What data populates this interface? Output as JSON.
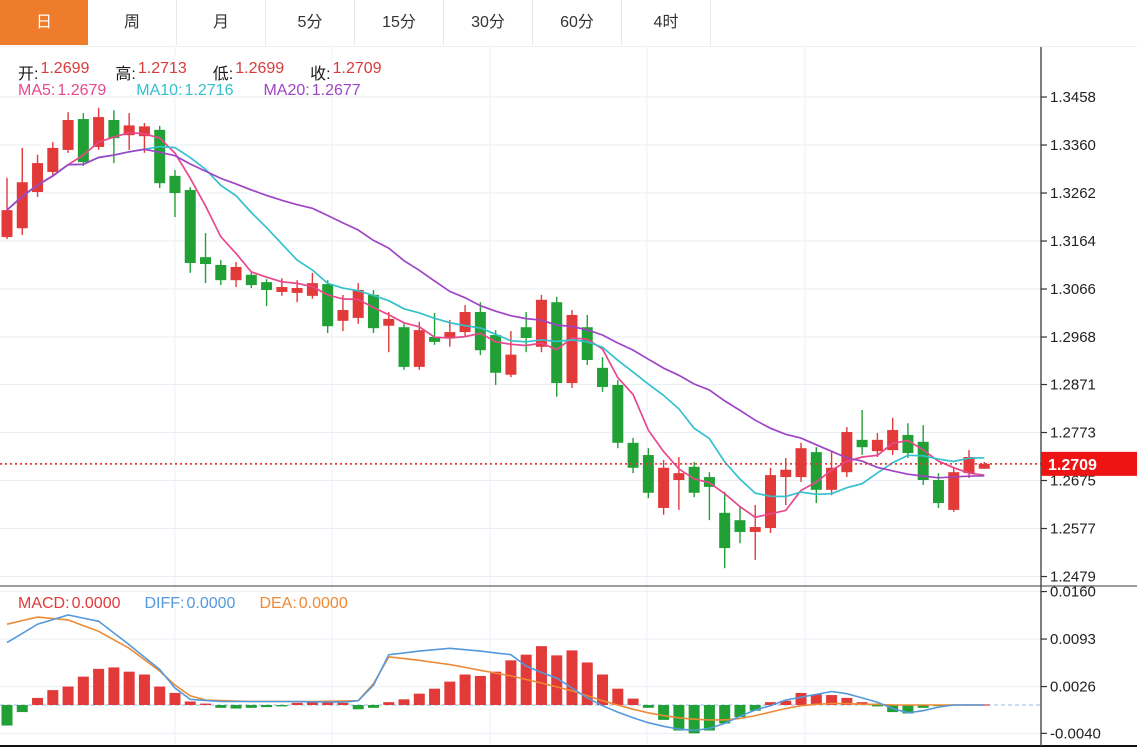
{
  "toolbar": {
    "tabs": [
      {
        "label": "日",
        "active": true
      },
      {
        "label": "周",
        "active": false
      },
      {
        "label": "月",
        "active": false
      },
      {
        "label": "5分",
        "active": false
      },
      {
        "label": "15分",
        "active": false
      },
      {
        "label": "30分",
        "active": false
      },
      {
        "label": "60分",
        "active": false
      },
      {
        "label": "4时",
        "active": false
      }
    ]
  },
  "legend": {
    "open_label": "开:",
    "open": "1.2699",
    "high_label": "高:",
    "high": "1.2713",
    "low_label": "低:",
    "low": "1.2699",
    "close_label": "收:",
    "close": "1.2709",
    "ma5_label": "MA5:",
    "ma5": "1.2679",
    "ma10_label": "MA10:",
    "ma10": "1.2716",
    "ma20_label": "MA20:",
    "ma20": "1.2677"
  },
  "macd_legend": {
    "macd_label": "MACD:",
    "macd": "0.0000",
    "diff_label": "DIFF:",
    "diff": "0.0000",
    "dea_label": "DEA:",
    "dea": "0.0000"
  },
  "price_badge": "1.2709",
  "colors": {
    "up": "#e23939",
    "down": "#21a135",
    "ma5": "#e8478d",
    "ma10": "#33c1cf",
    "ma20": "#9f44c6",
    "diff": "#5599dd",
    "dea": "#ed8a33",
    "grid": "#e9eff6",
    "vgrid": "#edf2f8",
    "axis_text": "#222222",
    "axis_line": "#444444",
    "badge_bg": "#ee1414",
    "badge_text": "#ffffff",
    "dotted_price_line": "#e23939",
    "tab_active_bg": "#ef7c2b",
    "zero_dash": "#8fbde8"
  },
  "chart_data": {
    "type": "candlestick+macd",
    "title": "",
    "legend_position": "top-left",
    "grid": true,
    "price_axis_ticks": [
      1.3458,
      1.336,
      1.3262,
      1.3164,
      1.3066,
      1.2968,
      1.2871,
      1.2773,
      1.2675,
      1.2577,
      1.2479
    ],
    "macd_axis_ticks": [
      0.016,
      0.0093,
      0.0026,
      -0.004
    ],
    "current_price": 1.2709,
    "ma_periods": [
      5,
      10,
      20
    ],
    "candles_ohlc": [
      [
        1.3172,
        1.3293,
        1.3168,
        1.3227
      ],
      [
        1.319,
        1.3354,
        1.3176,
        1.3284
      ],
      [
        1.3264,
        1.334,
        1.3254,
        1.3323
      ],
      [
        1.3305,
        1.3366,
        1.3295,
        1.3354
      ],
      [
        1.335,
        1.3427,
        1.3344,
        1.3411
      ],
      [
        1.3413,
        1.3425,
        1.3317,
        1.3325
      ],
      [
        1.3356,
        1.3436,
        1.335,
        1.3417
      ],
      [
        1.3411,
        1.3431,
        1.3323,
        1.3374
      ],
      [
        1.338,
        1.3425,
        1.335,
        1.34
      ],
      [
        1.3378,
        1.3405,
        1.3344,
        1.3398
      ],
      [
        1.3391,
        1.3399,
        1.3272,
        1.3282
      ],
      [
        1.3297,
        1.3309,
        1.3213,
        1.3262
      ],
      [
        1.3268,
        1.3274,
        1.3099,
        1.3119
      ],
      [
        1.3131,
        1.318,
        1.3078,
        1.3117
      ],
      [
        1.3115,
        1.3125,
        1.3074,
        1.3084
      ],
      [
        1.3084,
        1.3121,
        1.307,
        1.3111
      ],
      [
        1.3095,
        1.3101,
        1.3068,
        1.3074
      ],
      [
        1.308,
        1.3086,
        1.3031,
        1.3064
      ],
      [
        1.306,
        1.3088,
        1.3052,
        1.307
      ],
      [
        1.3058,
        1.3084,
        1.3039,
        1.3068
      ],
      [
        1.3052,
        1.3099,
        1.3046,
        1.3078
      ],
      [
        1.3076,
        1.3084,
        1.2976,
        1.299
      ],
      [
        1.3001,
        1.3054,
        1.298,
        1.3023
      ],
      [
        1.3007,
        1.3078,
        1.2995,
        1.3064
      ],
      [
        1.3054,
        1.3064,
        1.2976,
        1.2986
      ],
      [
        1.2991,
        1.3019,
        1.2937,
        1.3005
      ],
      [
        1.2988,
        1.2997,
        1.2901,
        1.2907
      ],
      [
        1.2907,
        1.2999,
        1.2901,
        1.2982
      ],
      [
        1.2968,
        1.3017,
        1.2952,
        1.2958
      ],
      [
        1.2966,
        1.3003,
        1.2948,
        1.2978
      ],
      [
        1.2978,
        1.3033,
        1.2968,
        1.3019
      ],
      [
        1.3019,
        1.3039,
        1.2931,
        1.2941
      ],
      [
        1.2972,
        1.2982,
        1.287,
        1.2895
      ],
      [
        1.2891,
        1.298,
        1.2886,
        1.2932
      ],
      [
        1.2988,
        1.3019,
        1.2937,
        1.2966
      ],
      [
        1.2948,
        1.3054,
        1.2937,
        1.3044
      ],
      [
        1.3039,
        1.305,
        1.2846,
        1.2874
      ],
      [
        1.2874,
        1.3023,
        1.2864,
        1.3013
      ],
      [
        1.2988,
        1.3013,
        1.2911,
        1.2921
      ],
      [
        1.2905,
        1.2927,
        1.2856,
        1.2866
      ],
      [
        1.287,
        1.288,
        1.2741,
        1.2752
      ],
      [
        1.2752,
        1.2762,
        1.269,
        1.2701
      ],
      [
        1.2727,
        1.2741,
        1.2639,
        1.265
      ],
      [
        1.2619,
        1.2717,
        1.2605,
        1.2701
      ],
      [
        1.2676,
        1.2723,
        1.2615,
        1.269
      ],
      [
        1.2703,
        1.2713,
        1.2641,
        1.265
      ],
      [
        1.2682,
        1.2692,
        1.2594,
        1.2662
      ],
      [
        1.2609,
        1.2652,
        1.2496,
        1.2537
      ],
      [
        1.2594,
        1.2621,
        1.2547,
        1.257
      ],
      [
        1.257,
        1.2625,
        1.2513,
        1.258
      ],
      [
        1.2578,
        1.2701,
        1.2568,
        1.2686
      ],
      [
        1.2682,
        1.2721,
        1.2625,
        1.2697
      ],
      [
        1.2682,
        1.2752,
        1.2672,
        1.2741
      ],
      [
        1.2733,
        1.2743,
        1.2629,
        1.2656
      ],
      [
        1.2656,
        1.2733,
        1.2645,
        1.2701
      ],
      [
        1.2692,
        1.2784,
        1.2682,
        1.2774
      ],
      [
        1.2758,
        1.2819,
        1.2727,
        1.2743
      ],
      [
        1.2735,
        1.2772,
        1.2723,
        1.2758
      ],
      [
        1.2737,
        1.2803,
        1.2727,
        1.2778
      ],
      [
        1.2768,
        1.2792,
        1.2721,
        1.2731
      ],
      [
        1.2754,
        1.2788,
        1.2666,
        1.2676
      ],
      [
        1.2676,
        1.269,
        1.2619,
        1.2629
      ],
      [
        1.2615,
        1.2703,
        1.2611,
        1.2692
      ],
      [
        1.269,
        1.2737,
        1.268,
        1.2723
      ],
      [
        1.2699,
        1.2713,
        1.2699,
        1.2709
      ]
    ],
    "macd_hist": [
      -0.0029,
      -0.001,
      0.001,
      0.0021,
      0.0026,
      0.004,
      0.0051,
      0.0053,
      0.0047,
      0.0043,
      0.0026,
      0.0017,
      0.0005,
      0.0002,
      -0.0004,
      -0.0005,
      -0.0004,
      -0.0003,
      -0.0002,
      0.0003,
      0.0004,
      0.0005,
      0.0003,
      -0.0006,
      -0.0004,
      0.0004,
      0.0008,
      0.0016,
      0.0023,
      0.0033,
      0.0043,
      0.0041,
      0.0047,
      0.0063,
      0.0071,
      0.0083,
      0.007,
      0.0077,
      0.006,
      0.0043,
      0.0023,
      0.0009,
      -0.0004,
      -0.0021,
      -0.0036,
      -0.004,
      -0.0036,
      -0.0026,
      -0.0017,
      -0.0008,
      0.0004,
      0.0006,
      0.0017,
      0.0015,
      0.0014,
      0.001,
      0.0004,
      -0.0002,
      -0.001,
      -0.0012,
      -0.0004,
      -0.0001,
      0.0,
      0.0,
      0.0
    ],
    "diff_points": [
      [
        0,
        0.0088
      ],
      [
        2,
        0.0114
      ],
      [
        4,
        0.0127
      ],
      [
        6,
        0.0118
      ],
      [
        8,
        0.0085
      ],
      [
        10,
        0.005
      ],
      [
        11,
        0.0024
      ],
      [
        12,
        0.0008
      ],
      [
        14,
        0.0005
      ],
      [
        18,
        0.0005
      ],
      [
        22,
        0.0004
      ],
      [
        23,
        0.0006
      ],
      [
        24,
        0.0028
      ],
      [
        25,
        0.0071
      ],
      [
        27,
        0.0076
      ],
      [
        29,
        0.008
      ],
      [
        31,
        0.0076
      ],
      [
        33,
        0.0071
      ],
      [
        34,
        0.0055
      ],
      [
        35,
        0.0046
      ],
      [
        36,
        0.0038
      ],
      [
        37,
        0.0024
      ],
      [
        38,
        0.001
      ],
      [
        39,
        -0.0001
      ],
      [
        40,
        -0.001
      ],
      [
        41,
        -0.0018
      ],
      [
        42,
        -0.0025
      ],
      [
        43,
        -0.003
      ],
      [
        44,
        -0.0034
      ],
      [
        45,
        -0.0036
      ],
      [
        46,
        -0.0033
      ],
      [
        47,
        -0.0026
      ],
      [
        48,
        -0.0016
      ],
      [
        49,
        -0.0007
      ],
      [
        50,
        -0.0001
      ],
      [
        51,
        0.0007
      ],
      [
        52,
        0.0011
      ],
      [
        53,
        0.0015
      ],
      [
        54,
        0.0019
      ],
      [
        55,
        0.0016
      ],
      [
        56,
        0.001
      ],
      [
        57,
        0.0004
      ],
      [
        58,
        -0.0005
      ],
      [
        59,
        -0.0011
      ],
      [
        60,
        -0.0008
      ],
      [
        61,
        -0.0003
      ],
      [
        62,
        0.0
      ],
      [
        64,
        0.0
      ]
    ],
    "dea_points": [
      [
        0,
        0.0114
      ],
      [
        2,
        0.0124
      ],
      [
        4,
        0.012
      ],
      [
        6,
        0.0104
      ],
      [
        8,
        0.008
      ],
      [
        10,
        0.0048
      ],
      [
        11,
        0.0028
      ],
      [
        12,
        0.0013
      ],
      [
        13,
        0.0007
      ],
      [
        16,
        0.0005
      ],
      [
        20,
        0.0005
      ],
      [
        23,
        0.0006
      ],
      [
        24,
        0.003
      ],
      [
        25,
        0.0068
      ],
      [
        27,
        0.0063
      ],
      [
        29,
        0.0057
      ],
      [
        31,
        0.0049
      ],
      [
        33,
        0.0041
      ],
      [
        35,
        0.0031
      ],
      [
        37,
        0.002
      ],
      [
        39,
        0.0006
      ],
      [
        40,
        0.0
      ],
      [
        41,
        -0.0006
      ],
      [
        42,
        -0.0011
      ],
      [
        43,
        -0.0015
      ],
      [
        44,
        -0.0018
      ],
      [
        45,
        -0.002
      ],
      [
        46,
        -0.0021
      ],
      [
        47,
        -0.0021
      ],
      [
        48,
        -0.0019
      ],
      [
        49,
        -0.0015
      ],
      [
        50,
        -0.001
      ],
      [
        51,
        -0.0005
      ],
      [
        52,
        -0.0001
      ],
      [
        53,
        0.0001
      ],
      [
        54,
        0.0002
      ],
      [
        55,
        0.0002
      ],
      [
        56,
        0.0001
      ],
      [
        57,
        0.0001
      ],
      [
        58,
        0.0
      ],
      [
        60,
        0.0
      ],
      [
        62,
        0.0
      ],
      [
        64,
        0.0
      ]
    ]
  }
}
